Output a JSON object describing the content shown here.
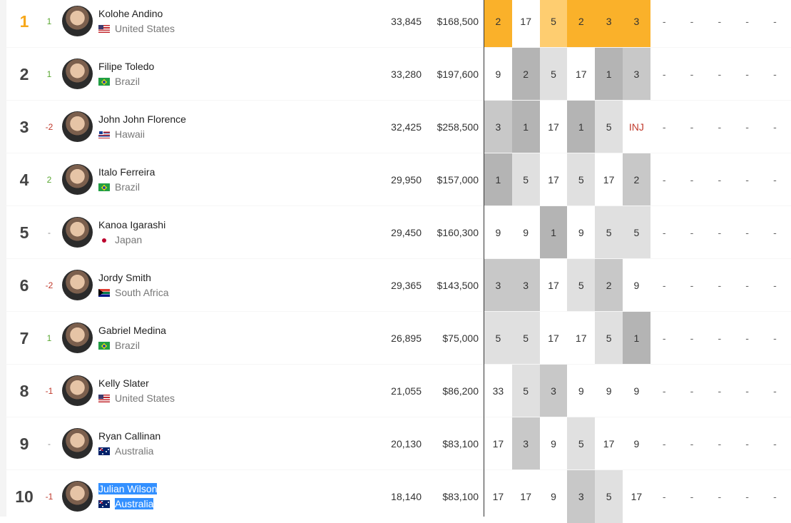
{
  "rankings": [
    {
      "rank": "1",
      "move": "1",
      "move_dir": "up",
      "name": "Kolohe Andino",
      "country": "United States",
      "flag": "flag-us",
      "points": "33,845",
      "prize": "$168,500",
      "results": [
        "2",
        "17",
        "5",
        "2",
        "3",
        "3"
      ],
      "shades": [
        "o1",
        "g0",
        "o2",
        "o1",
        "o1",
        "o1"
      ]
    },
    {
      "rank": "2",
      "move": "1",
      "move_dir": "up",
      "name": "Filipe Toledo",
      "country": "Brazil",
      "flag": "flag-br",
      "points": "33,280",
      "prize": "$197,600",
      "results": [
        "9",
        "2",
        "5",
        "17",
        "1",
        "3"
      ],
      "shades": [
        "g0",
        "g1",
        "g3",
        "g0",
        "g1",
        "g2"
      ]
    },
    {
      "rank": "3",
      "move": "-2",
      "move_dir": "down",
      "name": "John John Florence",
      "country": "Hawaii",
      "flag": "flag-hi",
      "points": "32,425",
      "prize": "$258,500",
      "results": [
        "3",
        "1",
        "17",
        "1",
        "5",
        "INJ"
      ],
      "shades": [
        "g2",
        "g1",
        "g0",
        "g1",
        "g3",
        "g0"
      ]
    },
    {
      "rank": "4",
      "move": "2",
      "move_dir": "up",
      "name": "Italo Ferreira",
      "country": "Brazil",
      "flag": "flag-br",
      "points": "29,950",
      "prize": "$157,000",
      "results": [
        "1",
        "5",
        "17",
        "5",
        "17",
        "2"
      ],
      "shades": [
        "g1",
        "g3",
        "g0",
        "g3",
        "g0",
        "g2"
      ]
    },
    {
      "rank": "5",
      "move": "-",
      "move_dir": "none",
      "name": "Kanoa Igarashi",
      "country": "Japan",
      "flag": "flag-jp",
      "points": "29,450",
      "prize": "$160,300",
      "results": [
        "9",
        "9",
        "1",
        "9",
        "5",
        "5"
      ],
      "shades": [
        "g0",
        "g0",
        "g1",
        "g0",
        "g3",
        "g3"
      ]
    },
    {
      "rank": "6",
      "move": "-2",
      "move_dir": "down",
      "name": "Jordy Smith",
      "country": "South Africa",
      "flag": "flag-za",
      "points": "29,365",
      "prize": "$143,500",
      "results": [
        "3",
        "3",
        "17",
        "5",
        "2",
        "9"
      ],
      "shades": [
        "g2",
        "g2",
        "g0",
        "g3",
        "g2",
        "g0"
      ]
    },
    {
      "rank": "7",
      "move": "1",
      "move_dir": "up",
      "name": "Gabriel Medina",
      "country": "Brazil",
      "flag": "flag-br",
      "points": "26,895",
      "prize": "$75,000",
      "results": [
        "5",
        "5",
        "17",
        "17",
        "5",
        "1"
      ],
      "shades": [
        "g3",
        "g3",
        "g0",
        "g0",
        "g3",
        "g1"
      ]
    },
    {
      "rank": "8",
      "move": "-1",
      "move_dir": "down",
      "name": "Kelly Slater",
      "country": "United States",
      "flag": "flag-us",
      "points": "21,055",
      "prize": "$86,200",
      "results": [
        "33",
        "5",
        "3",
        "9",
        "9",
        "9"
      ],
      "shades": [
        "g0",
        "g3",
        "g2",
        "g0",
        "g0",
        "g0"
      ]
    },
    {
      "rank": "9",
      "move": "-",
      "move_dir": "none",
      "name": "Ryan Callinan",
      "country": "Australia",
      "flag": "flag-au",
      "points": "20,130",
      "prize": "$83,100",
      "results": [
        "17",
        "3",
        "9",
        "5",
        "17",
        "9"
      ],
      "shades": [
        "g0",
        "g2",
        "g0",
        "g3",
        "g0",
        "g0"
      ]
    },
    {
      "rank": "10",
      "move": "-1",
      "move_dir": "down",
      "name": "Julian Wilson",
      "country": "Australia",
      "flag": "flag-au",
      "points": "18,140",
      "prize": "$83,100",
      "selected": true,
      "results": [
        "17",
        "17",
        "9",
        "3",
        "5",
        "17"
      ],
      "shades": [
        "g0",
        "g0",
        "g0",
        "g2",
        "g3",
        "g0"
      ]
    }
  ],
  "upcoming_placeholder": "-"
}
